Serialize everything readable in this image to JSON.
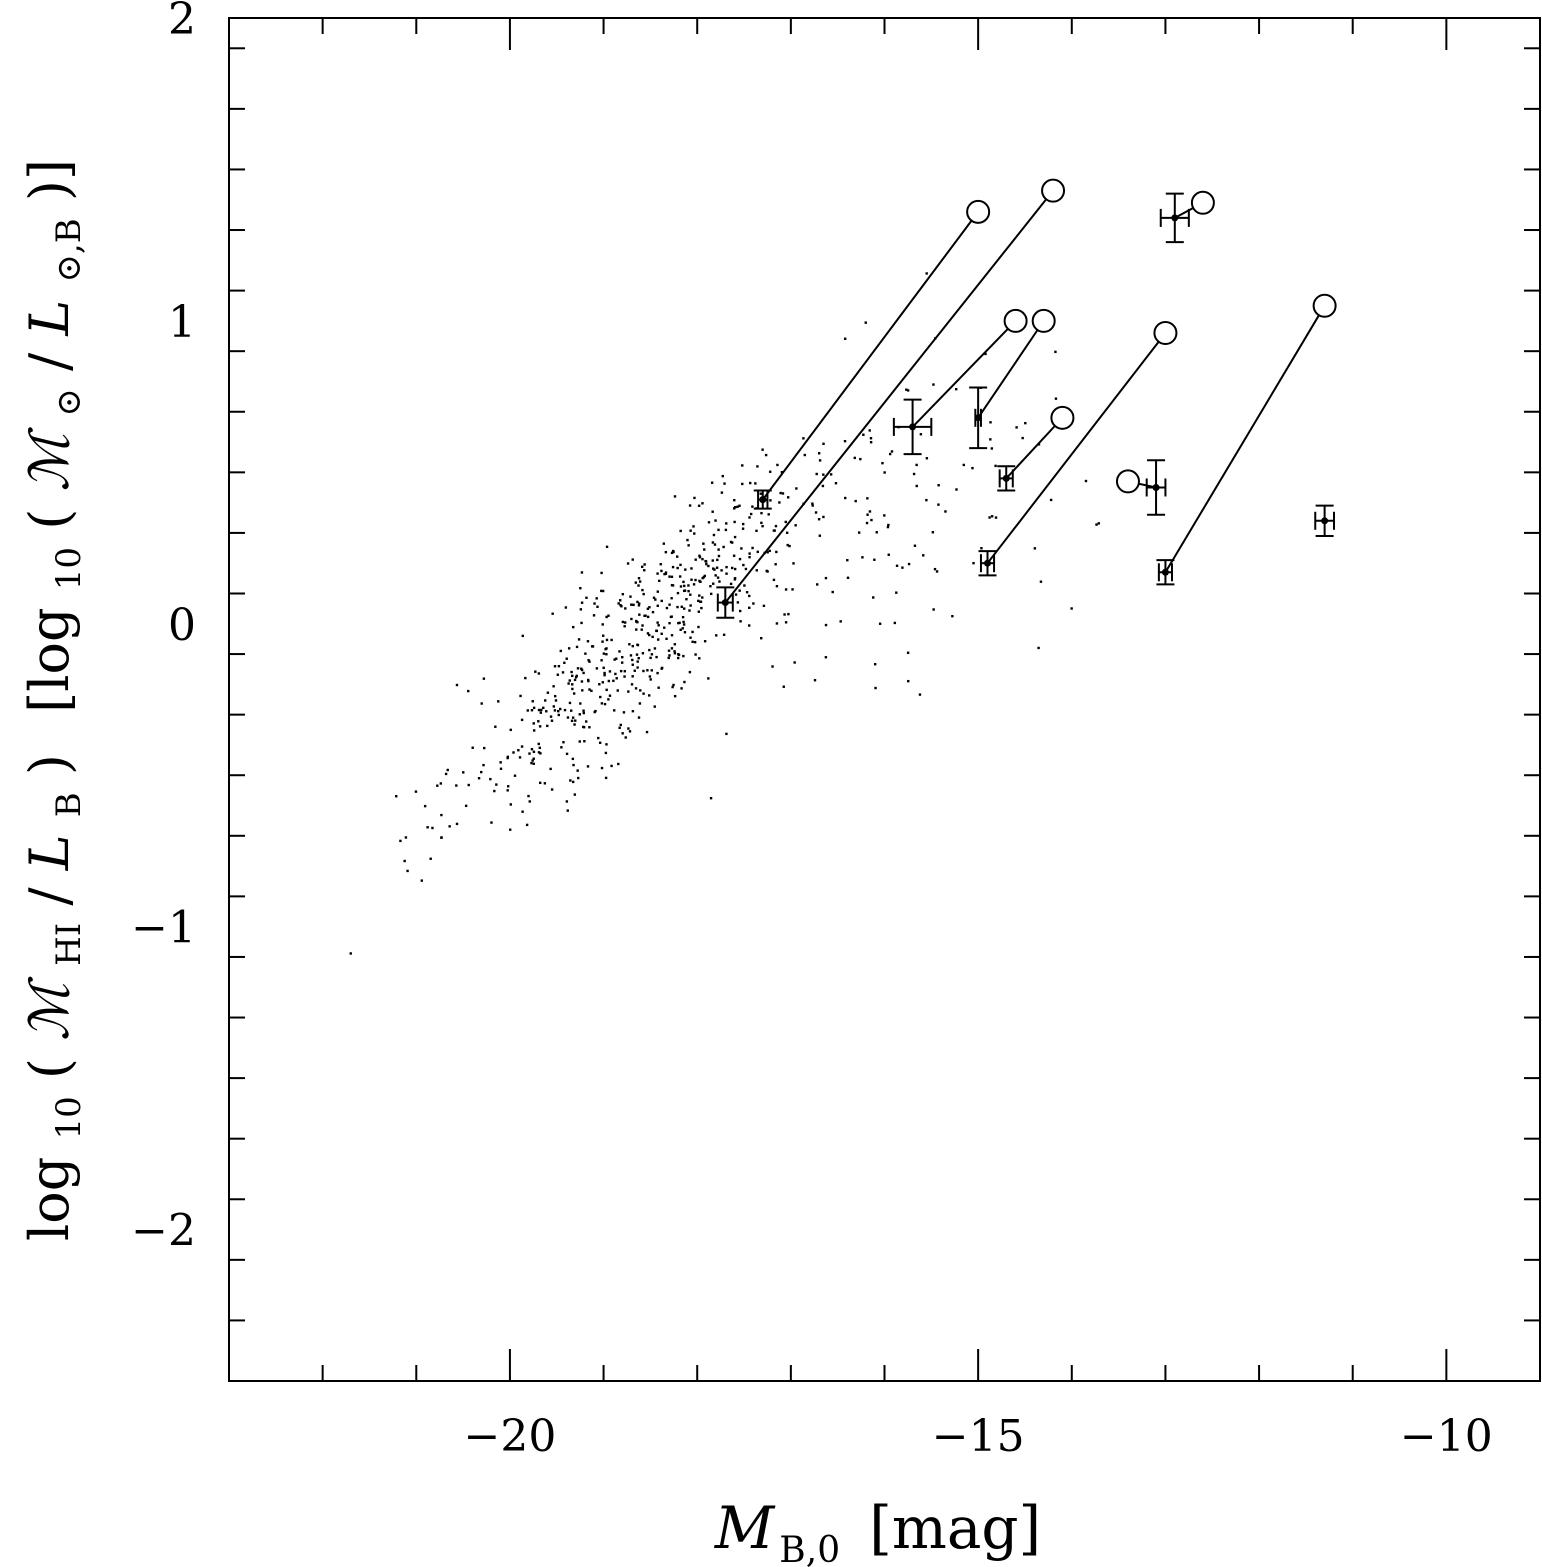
{
  "chart_data": {
    "type": "scatter",
    "xlabel": {
      "main": "M",
      "sub": "B,0",
      "unit": "[mag]"
    },
    "ylabel": {
      "p1": "log",
      "p1_sub": "10",
      "p2": "(",
      "p3": "ℳ",
      "p3_sub": "HI",
      "p4": "/",
      "p5": "L",
      "p5_sub": "B",
      "p6": ")",
      "p7": "[log",
      "p7_sub": "10",
      "p8": "(",
      "p9": "ℳ",
      "p9_sub": "⊙",
      "p10": "/",
      "p11": "L",
      "p11_sub": "⊙,B",
      "p12": ")]"
    },
    "xlim": [
      -23,
      -9
    ],
    "ylim": [
      -2.5,
      2
    ],
    "x_ticks": [
      {
        "value": -20,
        "label": "−20"
      },
      {
        "value": -15,
        "label": "−15"
      },
      {
        "value": -10,
        "label": "−10"
      }
    ],
    "y_ticks": [
      {
        "value": 2,
        "label": "2"
      },
      {
        "value": 1,
        "label": "1"
      },
      {
        "value": 0,
        "label": "0"
      },
      {
        "value": -1,
        "label": "−1"
      },
      {
        "value": -2,
        "label": "−2"
      }
    ],
    "x_minor_step": 1,
    "y_minor_step": 0.2,
    "highlighted": [
      {
        "x": -17.3,
        "y": 0.41,
        "xerr": 0.05,
        "yerr": 0.03,
        "x2": -15.0,
        "y2": 1.36
      },
      {
        "x": -17.7,
        "y": 0.07,
        "xerr": 0.08,
        "yerr": 0.05,
        "x2": -14.2,
        "y2": 1.43
      },
      {
        "x": -15.7,
        "y": 0.65,
        "xerr": 0.2,
        "yerr": 0.09,
        "x2": -14.6,
        "y2": 1.0
      },
      {
        "x": -15.0,
        "y": 0.68,
        "xerr": 0.03,
        "yerr": 0.1,
        "x2": -14.3,
        "y2": 1.0
      },
      {
        "x": -14.7,
        "y": 0.48,
        "xerr": 0.07,
        "yerr": 0.04,
        "x2": -14.1,
        "y2": 0.68
      },
      {
        "x": -14.9,
        "y": 0.2,
        "xerr": 0.07,
        "yerr": 0.04,
        "x2": -13.0,
        "y2": 0.96
      },
      {
        "x": -13.0,
        "y": 0.17,
        "xerr": 0.07,
        "yerr": 0.04,
        "x2": -11.3,
        "y2": 1.05
      },
      {
        "x": -12.9,
        "y": 1.34,
        "xerr": 0.15,
        "yerr": 0.08,
        "x2": -12.6,
        "y2": 1.39
      },
      {
        "x": -13.1,
        "y": 0.45,
        "xerr": 0.1,
        "yerr": 0.09,
        "x2": -13.4,
        "y2": 0.47
      },
      {
        "x": -11.3,
        "y": 0.34,
        "xerr": 0.1,
        "yerr": 0.05
      }
    ]
  }
}
